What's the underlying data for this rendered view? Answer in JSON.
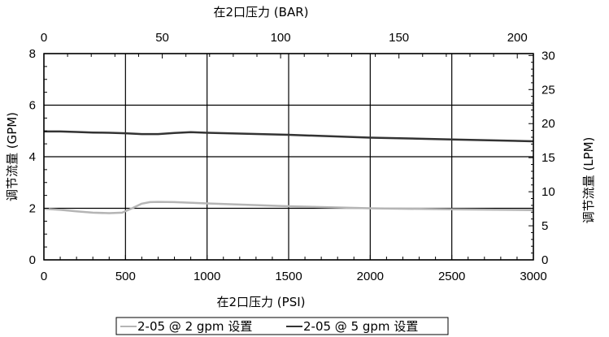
{
  "chart_data": {
    "type": "line",
    "title": "",
    "xlabel_bottom": "在2口压力 (PSI)",
    "xlabel_top": "在2口压力 (BAR)",
    "ylabel_left": "调节流量 (GPM)",
    "ylabel_right": "调节流量 (LPM)",
    "xlim": [
      0,
      3000
    ],
    "ylim": [
      0,
      8
    ],
    "x2lim": [
      0,
      206.8
    ],
    "y2lim": [
      0,
      30.28
    ],
    "x_ticks": [
      "0",
      "500",
      "1000",
      "1500",
      "2000",
      "2500",
      "3000"
    ],
    "y_ticks": [
      "0",
      "2",
      "4",
      "6",
      "8"
    ],
    "x2_ticks": [
      "0",
      "50",
      "100",
      "150",
      "200"
    ],
    "y2_ticks": [
      "0",
      "5",
      "10",
      "15",
      "20",
      "25",
      "30"
    ],
    "grid": true,
    "legend_position": "bottom",
    "series": [
      {
        "name": "2-05 @ 2 gpm 设置",
        "color": "#b5b5b5",
        "x": [
          0,
          100,
          200,
          300,
          400,
          480,
          540,
          600,
          650,
          700,
          800,
          1000,
          1500,
          2000,
          2500,
          3000
        ],
        "y": [
          1.98,
          1.94,
          1.88,
          1.83,
          1.81,
          1.83,
          2.0,
          2.18,
          2.24,
          2.25,
          2.24,
          2.19,
          2.08,
          2.0,
          1.96,
          1.93
        ]
      },
      {
        "name": "2-05 @ 5 gpm 设置",
        "color": "#333333",
        "x": [
          0,
          100,
          200,
          300,
          400,
          500,
          600,
          700,
          800,
          900,
          1000,
          1500,
          2000,
          2500,
          3000
        ],
        "y": [
          4.98,
          4.98,
          4.96,
          4.94,
          4.93,
          4.91,
          4.88,
          4.88,
          4.92,
          4.95,
          4.93,
          4.85,
          4.74,
          4.67,
          4.6
        ]
      }
    ]
  }
}
